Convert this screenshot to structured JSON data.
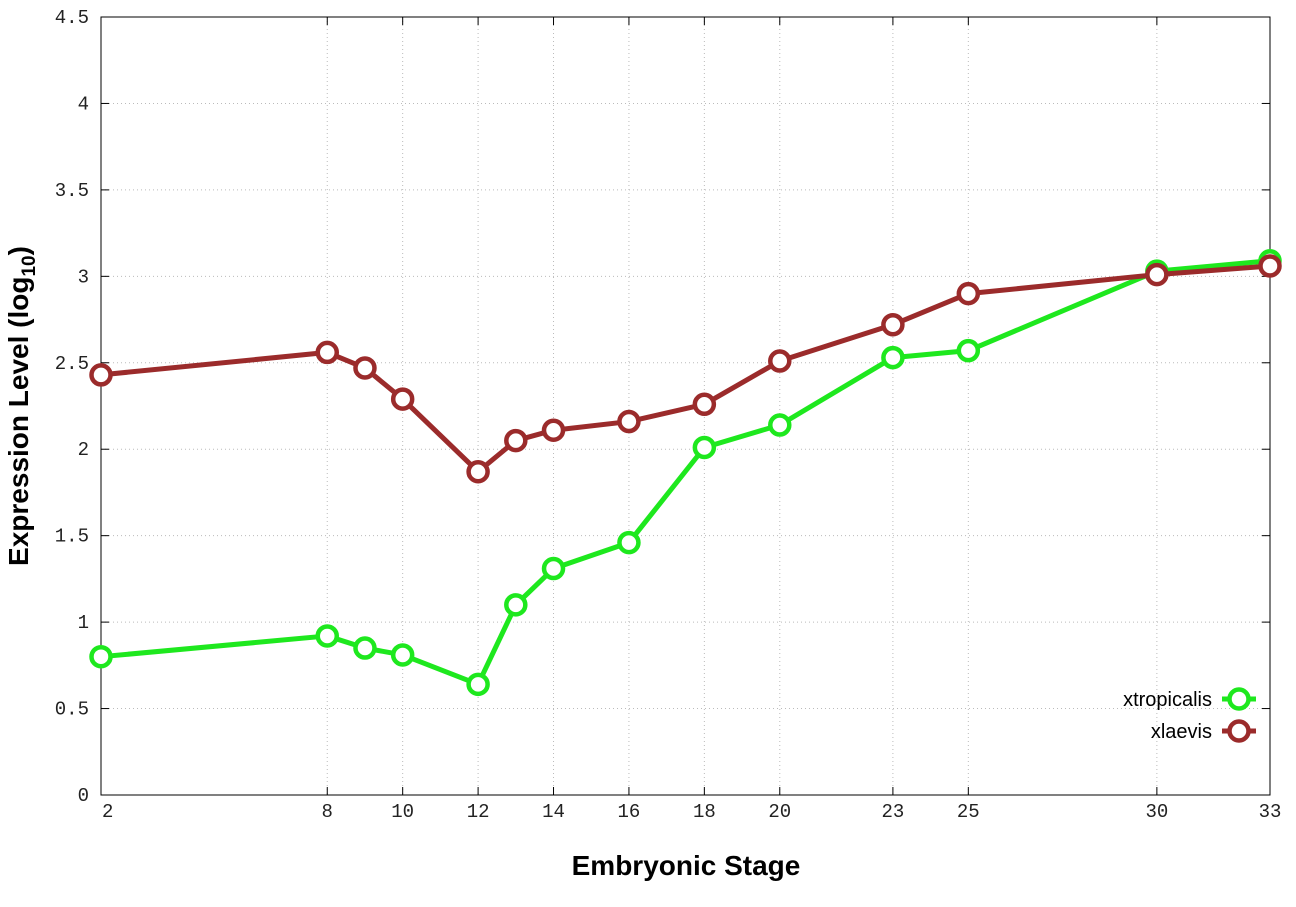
{
  "chart_data": {
    "type": "line",
    "title": "",
    "xlabel": "Embryonic Stage",
    "ylabel": {
      "main": "Expression Level (log",
      "sub": "10",
      "end": ")"
    },
    "xlim": [
      2,
      33
    ],
    "ylim": [
      0,
      4.5
    ],
    "x": [
      2,
      8,
      9,
      10,
      12,
      13,
      14,
      16,
      18,
      20,
      23,
      25,
      30,
      33
    ],
    "xticks": [
      2,
      8,
      10,
      12,
      14,
      16,
      18,
      20,
      23,
      25,
      30,
      33
    ],
    "yticks": [
      "0",
      "0.5",
      "1",
      "1.5",
      "2",
      "2.5",
      "3",
      "3.5",
      "4",
      "4.5"
    ],
    "grid": true,
    "legend_position": "bottom-right",
    "series": [
      {
        "name": "xtropicalis",
        "color": "#1ee81e",
        "values": [
          0.8,
          0.92,
          0.85,
          0.81,
          0.64,
          1.1,
          1.31,
          1.46,
          2.01,
          2.14,
          2.53,
          2.57,
          3.03,
          3.09
        ]
      },
      {
        "name": "xlaevis",
        "color": "#9b2b2b",
        "values": [
          2.43,
          2.56,
          2.47,
          2.29,
          1.87,
          2.05,
          2.11,
          2.16,
          2.26,
          2.51,
          2.72,
          2.9,
          3.01,
          3.06
        ]
      }
    ]
  }
}
